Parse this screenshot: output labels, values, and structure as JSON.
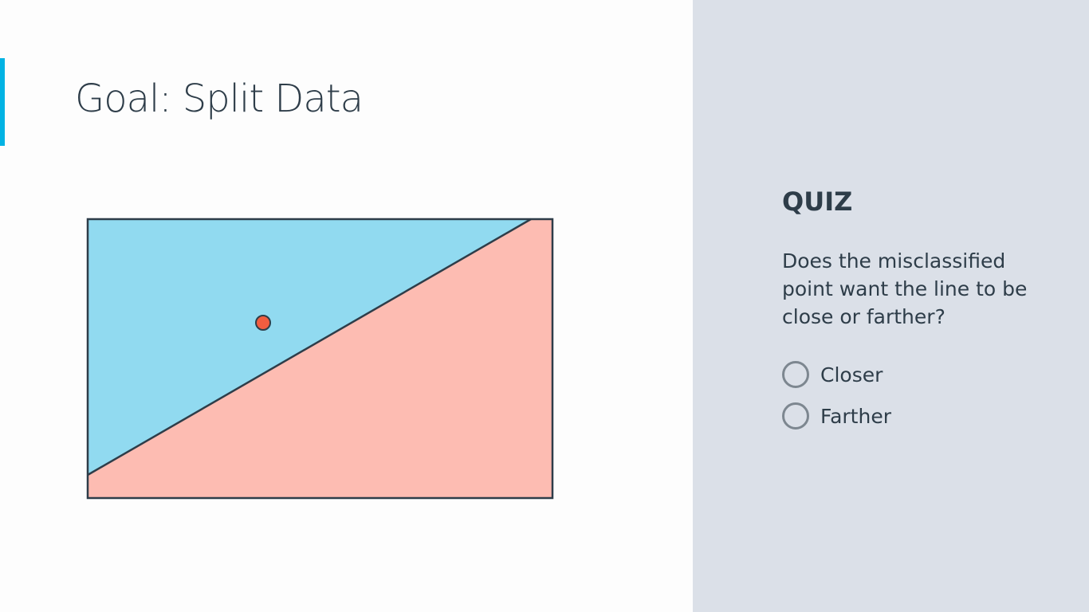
{
  "slide": {
    "title": "Goal: Split Data",
    "accent_color": "#02b3e4"
  },
  "diagram": {
    "colors": {
      "blue_region": "#91daf0",
      "red_region": "#fdbcb2",
      "point": "#f15d40",
      "outline": "#2e3d49"
    }
  },
  "quiz": {
    "heading": "QUIZ",
    "question": "Does the misclassified point want the line to be close or farther?",
    "options": [
      {
        "label": "Closer"
      },
      {
        "label": "Farther"
      }
    ]
  }
}
